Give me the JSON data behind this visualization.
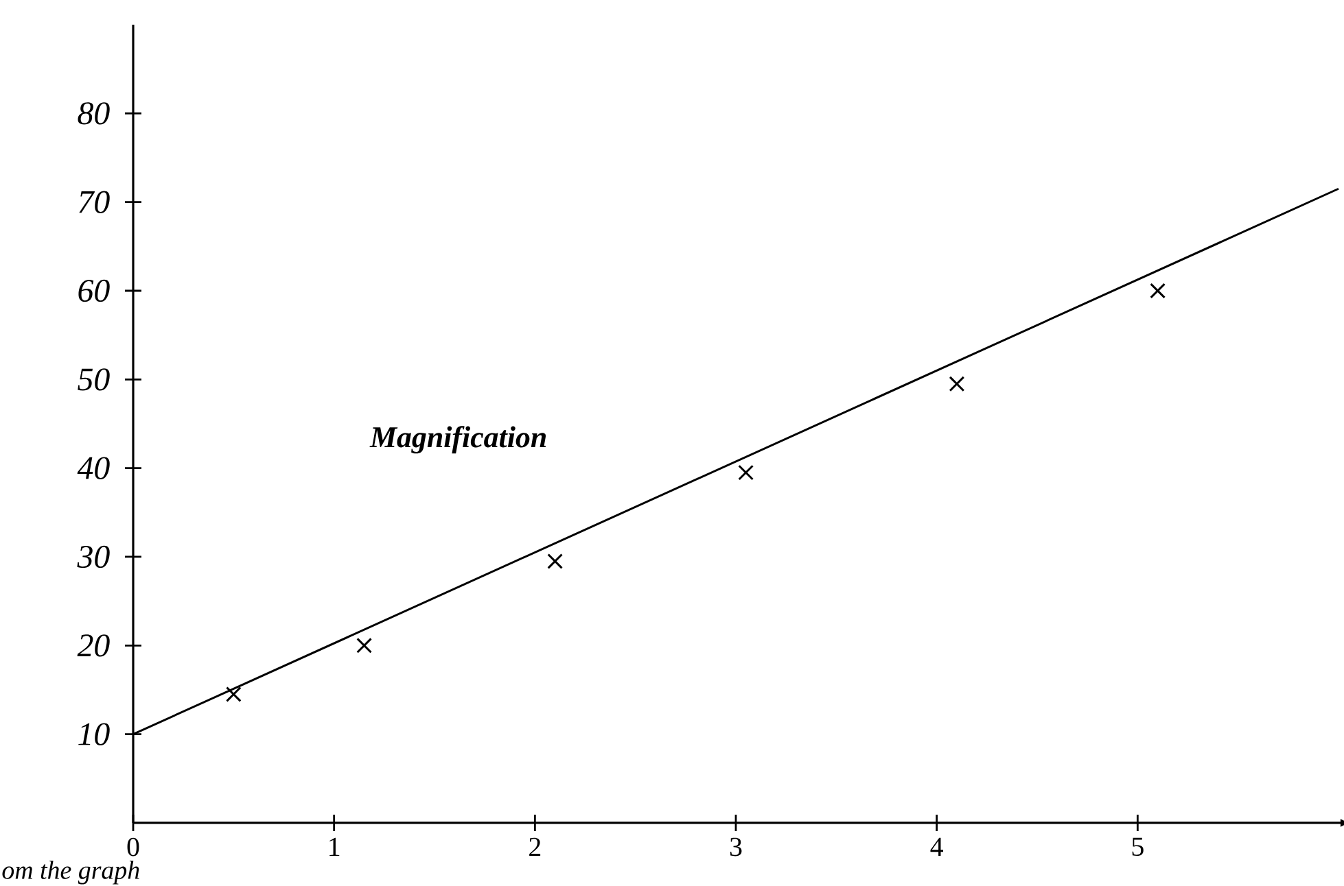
{
  "chart_data": {
    "type": "line",
    "xlim": [
      0,
      6
    ],
    "ylim": [
      0,
      90
    ],
    "xticks": [
      0,
      1,
      2,
      3,
      4,
      5
    ],
    "yticks": [
      10,
      20,
      30,
      40,
      50,
      60,
      70,
      80
    ],
    "grid": false,
    "annotations": [
      "Magnification",
      "om the graph"
    ],
    "series": [
      {
        "type": "scatter",
        "color": "#000000",
        "marker": "cross",
        "x": [
          0.5,
          1.15,
          2.1,
          3.05,
          4.1,
          5.1
        ],
        "values": [
          14.5,
          20,
          29.5,
          39.5,
          49.5,
          60
        ]
      },
      {
        "color": "#000000",
        "marker": "none",
        "x": [
          0,
          6
        ],
        "values": [
          10,
          71.5
        ]
      }
    ]
  }
}
